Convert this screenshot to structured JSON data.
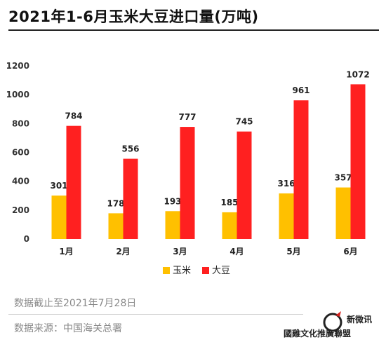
{
  "header": {
    "title": "2021年1-6月玉米大豆进口量(万吨)"
  },
  "chart_data": {
    "type": "bar",
    "title": "2021年1-6月玉米大豆进口量(万吨)",
    "categories": [
      "1月",
      "2月",
      "3月",
      "4月",
      "5月",
      "6月"
    ],
    "series": [
      {
        "name": "玉米",
        "color": "#FFC000",
        "values": [
          301,
          178,
          193,
          185,
          316,
          357
        ]
      },
      {
        "name": "大豆",
        "color": "#FF2020",
        "values": [
          784,
          556,
          777,
          745,
          961,
          1072
        ]
      }
    ],
    "yticks": [
      0,
      200,
      400,
      600,
      800,
      1000,
      1200
    ],
    "ylim": [
      0,
      1200
    ],
    "grid": false,
    "legend": "bottom"
  },
  "footer": {
    "note": "数据截止至2021年7月28日",
    "source": "数据来源：中国海关总署"
  },
  "watermark": {
    "account": "新微讯",
    "brand": "國雞文化推廣聯盟"
  }
}
